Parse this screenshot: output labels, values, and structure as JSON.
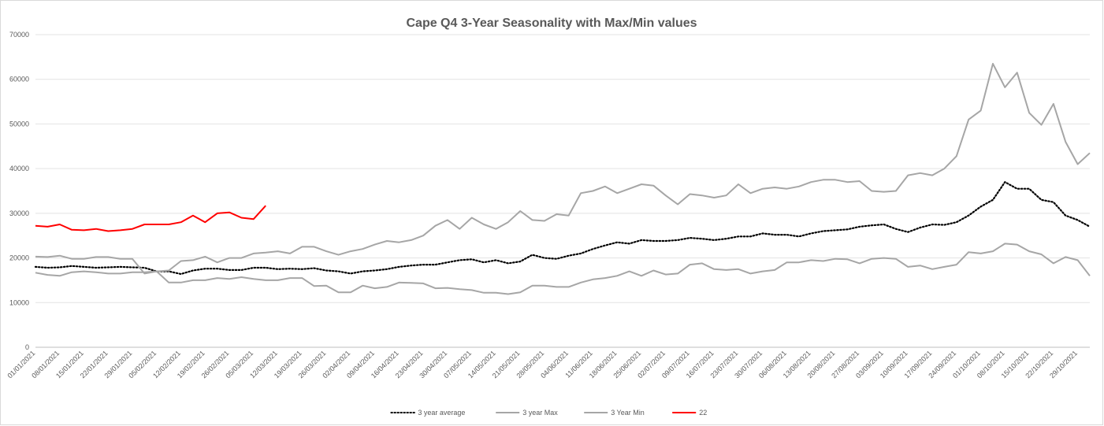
{
  "chart_data": {
    "type": "line",
    "title": "Cape Q4 3-Year Seasonality with Max/Min values",
    "categories": [
      "01/01/2021",
      null,
      "08/01/2021",
      null,
      "15/01/2021",
      null,
      "22/01/2021",
      null,
      "29/01/2021",
      null,
      "05/02/2021",
      null,
      "12/02/2021",
      null,
      "19/02/2021",
      null,
      "26/02/2021",
      null,
      "05/03/2021",
      null,
      "12/03/2021",
      null,
      "19/03/2021",
      null,
      "26/03/2021",
      null,
      "02/04/2021",
      null,
      "09/04/2021",
      null,
      "16/04/2021",
      null,
      "23/04/2021",
      null,
      "30/04/2021",
      null,
      "07/05/2021",
      null,
      "14/05/2021",
      null,
      "21/05/2021",
      null,
      "28/05/2021",
      null,
      "04/06/2021",
      null,
      "11/06/2021",
      null,
      "18/06/2021",
      null,
      "25/06/2021",
      null,
      "02/07/2021",
      null,
      "09/07/2021",
      null,
      "16/07/2021",
      null,
      "23/07/2021",
      null,
      "30/07/2021",
      null,
      "06/08/2021",
      null,
      "13/08/2021",
      null,
      "20/08/2021",
      null,
      "27/08/2021",
      null,
      "03/09/2021",
      null,
      "10/09/2021",
      null,
      "17/09/2021",
      null,
      "24/09/2021",
      null,
      "01/10/2021",
      null,
      "08/10/2021",
      null,
      "15/10/2021",
      null,
      "22/10/2021",
      null,
      "29/10/2021",
      null
    ],
    "series": [
      {
        "name": "3 year average",
        "color": "#000000",
        "line_style": "dotted",
        "values": [
          18000,
          17800,
          17900,
          18200,
          18000,
          17800,
          17900,
          18000,
          17900,
          17800,
          17000,
          17000,
          16400,
          17200,
          17600,
          17600,
          17300,
          17300,
          17800,
          17800,
          17500,
          17600,
          17500,
          17700,
          17200,
          17000,
          16500,
          17000,
          17200,
          17500,
          18000,
          18300,
          18500,
          18500,
          19000,
          19500,
          19700,
          19000,
          19500,
          18800,
          19200,
          20700,
          20000,
          19800,
          20500,
          21000,
          22000,
          22800,
          23500,
          23200,
          24000,
          23800,
          23800,
          24000,
          24500,
          24300,
          24000,
          24300,
          24800,
          24800,
          25500,
          25200,
          25200,
          24800,
          25500,
          26000,
          26200,
          26400,
          27000,
          27300,
          27500,
          26500,
          25800,
          26800,
          27500,
          27400,
          28000,
          29500,
          31500,
          33000,
          37000,
          35500,
          35500,
          33000,
          32500,
          29500,
          28500,
          27000
        ]
      },
      {
        "name": "3 year Max",
        "color": "#a6a6a6",
        "line_style": "solid",
        "values": [
          20300,
          20200,
          20500,
          19800,
          19800,
          20200,
          20200,
          19800,
          19800,
          16500,
          17000,
          17200,
          19300,
          19500,
          20300,
          19000,
          20000,
          20000,
          21000,
          21200,
          21500,
          21000,
          22500,
          22500,
          21500,
          20700,
          21500,
          22000,
          23000,
          23800,
          23500,
          24000,
          25000,
          27200,
          28500,
          26500,
          29000,
          27500,
          26500,
          28000,
          30500,
          28500,
          28300,
          29800,
          29500,
          34500,
          35000,
          36000,
          34500,
          35500,
          36500,
          36200,
          34000,
          32000,
          34300,
          34000,
          33500,
          34000,
          36500,
          34500,
          35500,
          35800,
          35500,
          36000,
          37000,
          37500,
          37500,
          37000,
          37200,
          35000,
          34800,
          35000,
          38500,
          39000,
          38500,
          40000,
          42800,
          51000,
          53000,
          63500,
          58200,
          61500,
          52500,
          49800,
          54500,
          46000,
          41000,
          43500
        ]
      },
      {
        "name": "3 Year Min",
        "color": "#a6a6a6",
        "line_style": "solid",
        "values": [
          16700,
          16200,
          16000,
          16800,
          17000,
          16800,
          16500,
          16500,
          16800,
          16800,
          17000,
          14500,
          14500,
          15000,
          15000,
          15500,
          15300,
          15700,
          15300,
          15000,
          15000,
          15500,
          15500,
          13700,
          13800,
          12300,
          12300,
          13800,
          13200,
          13500,
          14500,
          14400,
          14300,
          13200,
          13300,
          13000,
          12800,
          12200,
          12200,
          11900,
          12300,
          13800,
          13800,
          13500,
          13500,
          14500,
          15200,
          15500,
          16000,
          17000,
          16000,
          17200,
          16300,
          16500,
          18500,
          18800,
          17500,
          17300,
          17500,
          16500,
          17000,
          17300,
          19000,
          19000,
          19500,
          19300,
          19800,
          19700,
          18800,
          19800,
          20000,
          19800,
          18000,
          18300,
          17500,
          18000,
          18500,
          21300,
          21000,
          21500,
          23200,
          23000,
          21500,
          20800,
          18800,
          20200,
          19500,
          16000
        ]
      },
      {
        "name": "22",
        "color": "#ff0000",
        "line_style": "solid",
        "values": [
          27200,
          27000,
          27500,
          26300,
          26200,
          26500,
          26000,
          26200,
          26500,
          27500,
          27500,
          27500,
          28000,
          29500,
          28000,
          30000,
          30200,
          29000,
          28700,
          31700,
          null,
          null,
          null,
          null,
          null,
          null,
          null,
          null,
          null,
          null,
          null,
          null,
          null,
          null,
          null,
          null,
          null,
          null,
          null,
          null,
          null,
          null,
          null,
          null,
          null,
          null,
          null,
          null,
          null,
          null,
          null,
          null,
          null,
          null,
          null,
          null,
          null,
          null,
          null,
          null,
          null,
          null,
          null,
          null,
          null,
          null,
          null,
          null,
          null,
          null,
          null,
          null,
          null,
          null,
          null,
          null,
          null,
          null,
          null,
          null,
          null,
          null,
          null,
          null,
          null,
          null,
          null,
          null
        ]
      }
    ],
    "ylim": [
      0,
      70000
    ],
    "yticks": [
      0,
      10000,
      20000,
      30000,
      40000,
      50000,
      60000,
      70000
    ],
    "grid": true,
    "legend": "bottom"
  }
}
